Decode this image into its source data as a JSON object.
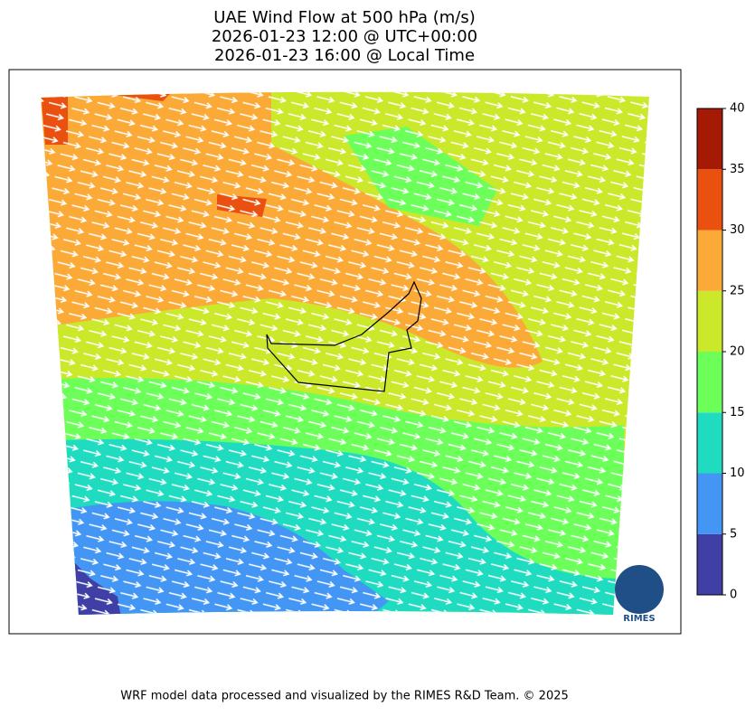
{
  "title": [
    "UAE Wind Flow at 500 hPa (m/s)",
    "2026-01-23 12:00 @ UTC+00:00",
    "2026-01-23 16:00 @ Local Time"
  ],
  "colorbar": {
    "lim": [
      0,
      40
    ],
    "ticks": [
      0,
      5,
      10,
      15,
      20,
      25,
      30,
      35,
      40
    ],
    "colors": [
      "#3f3fa5",
      "#4496f5",
      "#1fdcc0",
      "#6cff5a",
      "#cbe82a",
      "#fbaa38",
      "#ea5010",
      "#a51a05"
    ]
  },
  "logo": "RIMES",
  "footer": "WRF model data processed and visualized by the RIMES R&D Team. © 2025"
}
